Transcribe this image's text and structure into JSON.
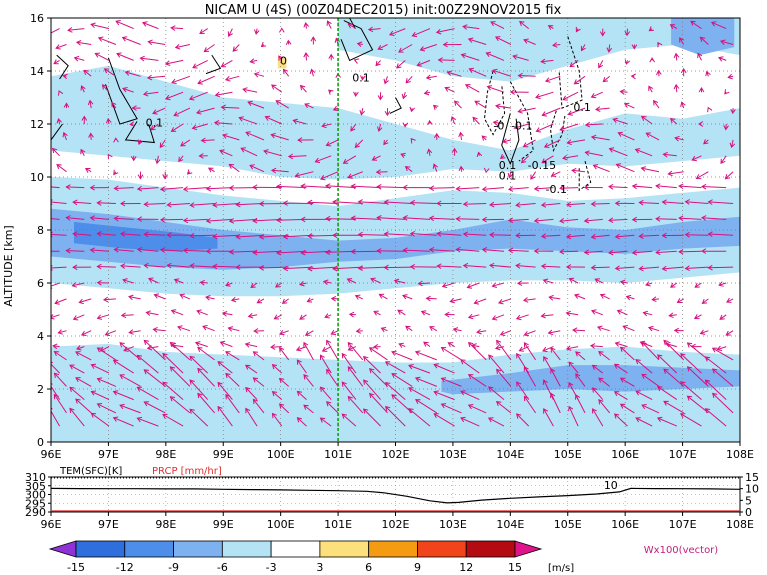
{
  "chart_data": {
    "type": "heatmap",
    "title": "NICAM U (4S) (00Z04DEC2015) init:00Z29NOV2015 fix",
    "main": {
      "ylabel": "ALTITUDE [km]",
      "xlim": [
        96,
        108
      ],
      "ylim": [
        0,
        16
      ],
      "xticks": [
        "96E",
        "97E",
        "98E",
        "99E",
        "100E",
        "101E",
        "102E",
        "103E",
        "104E",
        "105E",
        "106E",
        "107E",
        "108E"
      ],
      "yticks": [
        "0",
        "2",
        "4",
        "6",
        "8",
        "10",
        "12",
        "14",
        "16"
      ],
      "grid": true,
      "marker_line_lon": 101,
      "bands": [
        {
          "level": -6,
          "points": [
            [
              96,
              8.8
            ],
            [
              97,
              8.6
            ],
            [
              98,
              8.3
            ],
            [
              99,
              8.0
            ],
            [
              100,
              7.8
            ],
            [
              101,
              7.6
            ],
            [
              102,
              7.7
            ],
            [
              103,
              8.0
            ],
            [
              104,
              8.4
            ],
            [
              105,
              8.1
            ],
            [
              106,
              8.0
            ],
            [
              107,
              8.3
            ],
            [
              108,
              8.5
            ],
            [
              108,
              7.4
            ],
            [
              107,
              7.3
            ],
            [
              106,
              7.1
            ],
            [
              105,
              7.2
            ],
            [
              104,
              7.3
            ],
            [
              103,
              7.2
            ],
            [
              102,
              6.9
            ],
            [
              101,
              6.8
            ],
            [
              100,
              6.6
            ],
            [
              99,
              6.5
            ],
            [
              98,
              6.6
            ],
            [
              97,
              6.8
            ],
            [
              96,
              7.0
            ]
          ]
        },
        {
          "level": -9,
          "points": [
            [
              96.4,
              8.3
            ],
            [
              97.3,
              8.1
            ],
            [
              98.2,
              7.9
            ],
            [
              98.9,
              7.7
            ],
            [
              98.9,
              7.3
            ],
            [
              98.1,
              7.2
            ],
            [
              97.3,
              7.3
            ],
            [
              96.4,
              7.5
            ]
          ]
        },
        {
          "level": -3,
          "points": [
            [
              96,
              10.0
            ],
            [
              97,
              9.9
            ],
            [
              98,
              9.6
            ],
            [
              99,
              9.3
            ],
            [
              100,
              9.1
            ],
            [
              101,
              8.9
            ],
            [
              102,
              9.2
            ],
            [
              103,
              9.5
            ],
            [
              104,
              9.4
            ],
            [
              105,
              9.1
            ],
            [
              106,
              9.2
            ],
            [
              107,
              9.4
            ],
            [
              108,
              9.6
            ],
            [
              108,
              6.4
            ],
            [
              107,
              6.2
            ],
            [
              106,
              6.0
            ],
            [
              105,
              6.1
            ],
            [
              104,
              6.1
            ],
            [
              103,
              6.0
            ],
            [
              102,
              5.8
            ],
            [
              101,
              5.6
            ],
            [
              100,
              5.5
            ],
            [
              99,
              5.5
            ],
            [
              98,
              5.6
            ],
            [
              97,
              5.8
            ],
            [
              96,
              6.0
            ]
          ]
        },
        {
          "level": -6,
          "points": [
            [
              102.8,
              2.3
            ],
            [
              104.0,
              2.6
            ],
            [
              105.0,
              2.9
            ],
            [
              106.0,
              2.9
            ],
            [
              107.0,
              2.8
            ],
            [
              108,
              2.7
            ],
            [
              108,
              2.1
            ],
            [
              107,
              2.0
            ],
            [
              106,
              1.9
            ],
            [
              105,
              2.0
            ],
            [
              104,
              1.9
            ],
            [
              103,
              1.8
            ],
            [
              102.8,
              1.9
            ]
          ]
        },
        {
          "level": -3,
          "points": [
            [
              96,
              3.6
            ],
            [
              97,
              3.7
            ],
            [
              98,
              3.4
            ],
            [
              99,
              3.3
            ],
            [
              100,
              3.2
            ],
            [
              101,
              3.1
            ],
            [
              102,
              3.0
            ],
            [
              103,
              3.0
            ],
            [
              104,
              3.3
            ],
            [
              105,
              3.5
            ],
            [
              106,
              3.6
            ],
            [
              107,
              3.4
            ],
            [
              108,
              3.3
            ],
            [
              108,
              0
            ],
            [
              96,
              0
            ]
          ]
        },
        {
          "level": -3,
          "points": [
            [
              96,
              13.8
            ],
            [
              97,
              14.2
            ],
            [
              98,
              13.6
            ],
            [
              99,
              13.0
            ],
            [
              100,
              12.8
            ],
            [
              101,
              12.6
            ],
            [
              102,
              12.0
            ],
            [
              103,
              11.4
            ],
            [
              104,
              11.0
            ],
            [
              105,
              11.8
            ],
            [
              106,
              12.4
            ],
            [
              107,
              12.2
            ],
            [
              108,
              12.6
            ],
            [
              108,
              10.8
            ],
            [
              107,
              10.6
            ],
            [
              106,
              10.4
            ],
            [
              105,
              10.5
            ],
            [
              104,
              10.2
            ],
            [
              103,
              10.3
            ],
            [
              102,
              10.0
            ],
            [
              101,
              9.9
            ],
            [
              100,
              10.0
            ],
            [
              99,
              10.4
            ],
            [
              98,
              10.6
            ],
            [
              97,
              10.8
            ],
            [
              96,
              11.0
            ]
          ]
        },
        {
          "level": -3,
          "points": [
            [
              101,
              16
            ],
            [
              108,
              16
            ],
            [
              108,
              14.6
            ],
            [
              107,
              15.0
            ],
            [
              106,
              14.8
            ],
            [
              105,
              14.2
            ],
            [
              104,
              13.6
            ],
            [
              103,
              13.8
            ],
            [
              102,
              14.4
            ],
            [
              101,
              14.8
            ]
          ]
        },
        {
          "level": -6,
          "points": [
            [
              106.8,
              16
            ],
            [
              107.9,
              16
            ],
            [
              107.9,
              14.9
            ],
            [
              107.3,
              14.6
            ],
            [
              106.8,
              15.0
            ]
          ]
        },
        {
          "level": 3,
          "points": [
            [
              99.95,
              14.5
            ],
            [
              100.1,
              14.5
            ],
            [
              100.1,
              14.1
            ],
            [
              99.95,
              14.1
            ]
          ]
        }
      ],
      "contours": [
        {
          "points": [
            [
              96.1,
              14.6
            ],
            [
              96.3,
              14.2
            ],
            [
              96.15,
              13.7
            ]
          ],
          "dashed": false
        },
        {
          "points": [
            [
              97.0,
              14.5
            ],
            [
              97.2,
              13.3
            ],
            [
              97.5,
              12.2
            ],
            [
              97.2,
              12.0
            ],
            [
              96.95,
              13.5
            ]
          ],
          "dashed": false
        },
        {
          "points": [
            [
              97.5,
              12.1
            ],
            [
              97.3,
              11.4
            ],
            [
              97.8,
              11.3
            ],
            [
              97.7,
              12.0
            ]
          ],
          "dashed": false
        },
        {
          "points": [
            [
              96.2,
              12.0
            ],
            [
              96.0,
              11.4
            ]
          ],
          "dashed": false
        },
        {
          "points": [
            [
              98.8,
              14.6
            ],
            [
              98.95,
              14.1
            ],
            [
              98.7,
              13.9
            ]
          ],
          "dashed": false
        },
        {
          "points": [
            [
              101.1,
              15.9
            ],
            [
              101.4,
              15.6
            ],
            [
              101.6,
              14.8
            ],
            [
              101.2,
              14.4
            ],
            [
              101.05,
              15.2
            ]
          ],
          "dashed": false
        },
        {
          "points": [
            [
              101.2,
              16
            ],
            [
              101.3,
              15.6
            ]
          ],
          "dashed": false
        },
        {
          "points": [
            [
              102.0,
              13.0
            ],
            [
              102.1,
              12.6
            ],
            [
              101.9,
              12.4
            ]
          ],
          "dashed": false
        },
        {
          "points": [
            [
              103.7,
              14.0
            ],
            [
              103.6,
              13.2
            ],
            [
              103.55,
              12.2
            ],
            [
              103.7,
              11.6
            ],
            [
              103.9,
              12.4
            ],
            [
              103.85,
              13.5
            ]
          ],
          "dashed": true
        },
        {
          "points": [
            [
              104.8,
              12.5
            ],
            [
              104.7,
              11.8
            ],
            [
              104.75,
              11.0
            ],
            [
              104.9,
              11.6
            ],
            [
              104.95,
              12.3
            ]
          ],
          "dashed": true
        },
        {
          "points": [
            [
              105.0,
              15.3
            ],
            [
              105.2,
              14.0
            ],
            [
              105.25,
              12.9
            ],
            [
              104.9,
              12.6
            ],
            [
              104.85,
              14.0
            ]
          ],
          "dashed": true
        },
        {
          "points": [
            [
              104.0,
              12.4
            ],
            [
              103.85,
              11.2
            ],
            [
              104.0,
              10.5
            ],
            [
              104.15,
              11.4
            ],
            [
              104.1,
              12.2
            ]
          ],
          "dashed": false
        },
        {
          "points": [
            [
              105.3,
              10.6
            ],
            [
              105.4,
              9.8
            ],
            [
              105.2,
              9.5
            ],
            [
              105.2,
              10.4
            ]
          ],
          "dashed": true
        },
        {
          "points": [
            [
              104.0,
              13.6
            ],
            [
              104.3,
              12.4
            ],
            [
              104.4,
              11.0
            ],
            [
              104.15,
              10.6
            ]
          ],
          "dashed": true
        }
      ],
      "contour_labels": [
        {
          "text": "0.1",
          "x": 97.8,
          "y": 11.9
        },
        {
          "text": "0.1",
          "x": 101.4,
          "y": 13.6
        },
        {
          "text": "0.1",
          "x": 105.25,
          "y": 12.5
        },
        {
          "text": "-0",
          "x": 103.8,
          "y": 11.8
        },
        {
          "text": "-0.1",
          "x": 104.2,
          "y": 11.8
        },
        {
          "text": "0.1",
          "x": 103.95,
          "y": 9.9
        },
        {
          "text": "0.1",
          "x": 103.95,
          "y": 10.3
        },
        {
          "text": "-0.15",
          "x": 104.55,
          "y": 10.3
        },
        {
          "text": "-0.1",
          "x": 104.8,
          "y": 9.4
        },
        {
          "text": "0",
          "x": 100.05,
          "y": 14.25
        }
      ],
      "vectors": {
        "units": "m/s and W x100",
        "heights_km": [
          0.6,
          1.1,
          1.6,
          2.1,
          2.6,
          3.1,
          3.6,
          4.2,
          4.8,
          5.4,
          6.0,
          6.6,
          7.2,
          7.8,
          8.4,
          9.0,
          9.6,
          10.2,
          10.8,
          11.4,
          12.0,
          12.6,
          13.2,
          13.8,
          14.4,
          15.0,
          15.6
        ],
        "lon_step": 0.43
      }
    },
    "sub": {
      "left_label": "TEM(SFC)[K]",
      "right_label": "PRCP [mm/hr]",
      "temp_ylim": [
        290,
        310
      ],
      "temp_yticks": [
        "290",
        "295",
        "300",
        "305",
        "310"
      ],
      "prcp_ylim": [
        0,
        15
      ],
      "prcp_yticks": [
        "0",
        "5",
        "10",
        "15"
      ],
      "xticks": [
        "96E",
        "97E",
        "98E",
        "99E",
        "100E",
        "101E",
        "102E",
        "103E",
        "104E",
        "105E",
        "106E",
        "107E",
        "108E"
      ],
      "temp_series": {
        "x": [
          96,
          96.5,
          97,
          97.5,
          98,
          98.5,
          99,
          99.5,
          100,
          100.5,
          101,
          101.5,
          101.8,
          102.2,
          102.6,
          102.9,
          103.1,
          103.5,
          104,
          104.5,
          105,
          105.5,
          105.9,
          106.1,
          106.5,
          107,
          107.5,
          108
        ],
        "y": [
          303.5,
          303.4,
          303.3,
          303.3,
          303.2,
          303.2,
          303.0,
          302.8,
          302.6,
          302.4,
          302.2,
          301.8,
          301.0,
          299.0,
          296.4,
          295.2,
          295.5,
          296.8,
          297.8,
          298.6,
          299.4,
          300.3,
          301.5,
          303.5,
          303.4,
          303.3,
          303.2,
          303.0
        ]
      },
      "prcp_series": {
        "x": [
          96,
          108
        ],
        "y": [
          0,
          0
        ]
      },
      "dotted_top_value": 310,
      "annotation": "10"
    },
    "colorbar": {
      "levels": [
        "-15",
        "-12",
        "-9",
        "-6",
        "-3",
        "3",
        "6",
        "9",
        "12",
        "15"
      ],
      "units": "[m/s]",
      "colors": [
        "#8f32d6",
        "#2f6fdd",
        "#4c8eea",
        "#7eb1f0",
        "#b4e3f5",
        "#ffffff",
        "#fbe07c",
        "#f59b12",
        "#f2441a",
        "#b40a12",
        "#e0148a"
      ]
    },
    "vector_legend": "Wx100(vector)"
  }
}
